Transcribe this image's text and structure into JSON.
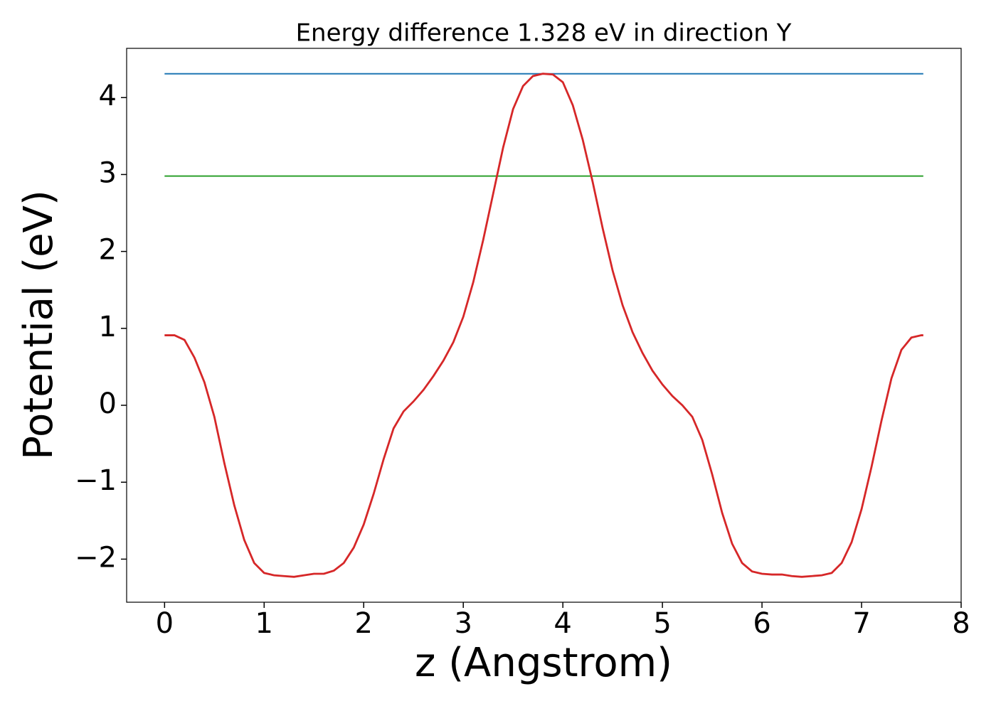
{
  "chart_data": {
    "type": "line",
    "title": "Energy difference 1.328 eV in direction Y",
    "xlabel": "z (Angstrom)",
    "ylabel": "Potential (eV)",
    "xlim": [
      -0.381,
      8.0
    ],
    "ylim": [
      -2.56,
      4.64
    ],
    "xticks": [
      0,
      1,
      2,
      3,
      4,
      5,
      6,
      7,
      8
    ],
    "yticks": [
      {
        "value": -2,
        "label": "−2"
      },
      {
        "value": -1,
        "label": "−1"
      },
      0,
      1,
      2,
      3,
      4
    ],
    "grid": false,
    "series": [
      {
        "color": "#d62728",
        "x": [
          0,
          0.1,
          0.2,
          0.3,
          0.4,
          0.5,
          0.6,
          0.7,
          0.8,
          0.9,
          1.0,
          1.1,
          1.2,
          1.3,
          1.4,
          1.5,
          1.6,
          1.7,
          1.8,
          1.9,
          2.0,
          2.1,
          2.2,
          2.3,
          2.4,
          2.5,
          2.6,
          2.7,
          2.8,
          2.9,
          3.0,
          3.1,
          3.2,
          3.3,
          3.4,
          3.5,
          3.6,
          3.7,
          3.8,
          3.9,
          4.0,
          4.1,
          4.2,
          4.3,
          4.4,
          4.5,
          4.6,
          4.7,
          4.8,
          4.9,
          5.0,
          5.1,
          5.2,
          5.3,
          5.4,
          5.5,
          5.6,
          5.7,
          5.8,
          5.9,
          6.0,
          6.1,
          6.2,
          6.3,
          6.4,
          6.5,
          6.6,
          6.7,
          6.8,
          6.9,
          7.0,
          7.1,
          7.2,
          7.3,
          7.4,
          7.5,
          7.6,
          7.62
        ],
        "values": [
          0.91,
          0.91,
          0.85,
          0.62,
          0.3,
          -0.15,
          -0.75,
          -1.3,
          -1.75,
          -2.05,
          -2.18,
          -2.21,
          -2.22,
          -2.23,
          -2.21,
          -2.19,
          -2.19,
          -2.15,
          -2.05,
          -1.85,
          -1.55,
          -1.15,
          -0.7,
          -0.3,
          -0.08,
          0.05,
          0.2,
          0.38,
          0.58,
          0.82,
          1.15,
          1.6,
          2.15,
          2.75,
          3.35,
          3.85,
          4.15,
          4.28,
          4.31,
          4.3,
          4.2,
          3.9,
          3.45,
          2.9,
          2.3,
          1.75,
          1.3,
          0.95,
          0.68,
          0.45,
          0.27,
          0.12,
          0.0,
          -0.15,
          -0.45,
          -0.9,
          -1.4,
          -1.8,
          -2.05,
          -2.16,
          -2.19,
          -2.2,
          -2.2,
          -2.22,
          -2.23,
          -2.22,
          -2.21,
          -2.18,
          -2.05,
          -1.78,
          -1.35,
          -0.8,
          -0.2,
          0.35,
          0.72,
          0.88,
          0.91,
          0.91
        ]
      },
      {
        "color": "#1f77b4",
        "x": [
          0,
          7.62
        ],
        "values": [
          4.31,
          4.31
        ]
      },
      {
        "color": "#2ca02c",
        "x": [
          0,
          7.62
        ],
        "values": [
          2.98,
          2.98
        ]
      }
    ]
  }
}
